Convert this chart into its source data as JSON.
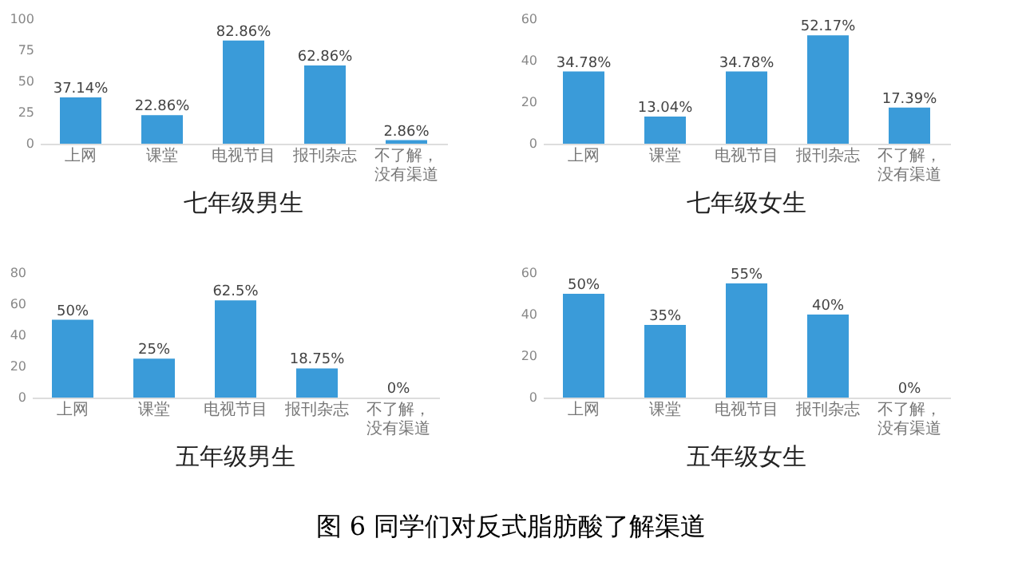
{
  "chart_data": [
    {
      "type": "bar",
      "title": "七年级男生",
      "categories": [
        "上网",
        "课堂",
        "电视节目",
        "报刊杂志",
        "不了解，没有渠道"
      ],
      "values": [
        37.14,
        22.86,
        82.86,
        62.86,
        2.86
      ],
      "value_labels": [
        "37.14%",
        "22.86%",
        "82.86%",
        "62.86%",
        "2.86%"
      ],
      "color": "#3a9bd9",
      "ylim": [
        0,
        100
      ],
      "yticks": [
        0,
        25,
        50,
        75,
        100
      ],
      "grid": false
    },
    {
      "type": "bar",
      "title": "七年级女生",
      "categories": [
        "上网",
        "课堂",
        "电视节目",
        "报刊杂志",
        "不了解，没有渠道"
      ],
      "values": [
        34.78,
        13.04,
        34.78,
        52.17,
        17.39
      ],
      "value_labels": [
        "34.78%",
        "13.04%",
        "34.78%",
        "52.17%",
        "17.39%"
      ],
      "color": "#3a9bd9",
      "ylim": [
        0,
        60
      ],
      "yticks": [
        0,
        20,
        40,
        60
      ],
      "grid": false
    },
    {
      "type": "bar",
      "title": "五年级男生",
      "categories": [
        "上网",
        "课堂",
        "电视节目",
        "报刊杂志",
        "不了解，没有渠道"
      ],
      "values": [
        50,
        25,
        62.5,
        18.75,
        0
      ],
      "value_labels": [
        "50%",
        "25%",
        "62.5%",
        "18.75%",
        "0%"
      ],
      "color": "#3a9bd9",
      "ylim": [
        0,
        80
      ],
      "yticks": [
        0,
        20,
        40,
        60,
        80
      ],
      "grid": false
    },
    {
      "type": "bar",
      "title": "五年级女生",
      "categories": [
        "上网",
        "课堂",
        "电视节目",
        "报刊杂志",
        "不了解，没有渠道"
      ],
      "values": [
        50,
        35,
        55,
        40,
        0
      ],
      "value_labels": [
        "50%",
        "35%",
        "55%",
        "40%",
        "0%"
      ],
      "color": "#3a9bd9",
      "ylim": [
        0,
        60
      ],
      "yticks": [
        0,
        20,
        40,
        60
      ],
      "grid": false,
      "annotations": [
        "图 6  同学们对反式脂肪酸了解渠道"
      ]
    }
  ]
}
